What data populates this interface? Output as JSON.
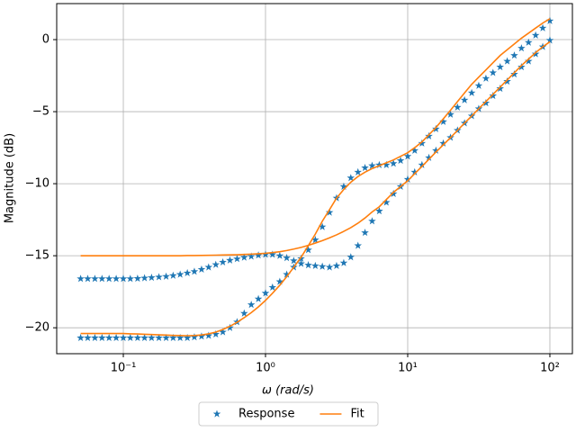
{
  "chart_data": {
    "type": "line",
    "xlabel": "ω (rad/s)",
    "ylabel": "Magnitude (dB)",
    "xscale": "log",
    "grid": true,
    "legend": "below",
    "xlim": [
      0.034,
      144
    ],
    "ylim": [
      -21.8,
      2.5
    ],
    "xticks": [
      {
        "value": 0.1,
        "label": "10⁻¹"
      },
      {
        "value": 1,
        "label": "10⁰"
      },
      {
        "value": 10,
        "label": "10¹"
      },
      {
        "value": 100,
        "label": "10²"
      }
    ],
    "yticks": [
      {
        "value": -20,
        "label": "−20"
      },
      {
        "value": -15,
        "label": "−15"
      },
      {
        "value": -10,
        "label": "−10"
      },
      {
        "value": -5,
        "label": "−5"
      },
      0
    ],
    "x": [
      0.0501,
      0.0562,
      0.0631,
      0.0708,
      0.0794,
      0.0891,
      0.1,
      0.112,
      0.126,
      0.141,
      0.158,
      0.178,
      0.2,
      0.224,
      0.251,
      0.282,
      0.316,
      0.355,
      0.398,
      0.447,
      0.501,
      0.562,
      0.631,
      0.708,
      0.794,
      0.891,
      1,
      1.12,
      1.26,
      1.41,
      1.58,
      1.78,
      2,
      2.24,
      2.51,
      2.82,
      3.16,
      3.55,
      3.98,
      4.47,
      5.01,
      5.62,
      6.31,
      7.08,
      7.94,
      8.91,
      10,
      11.2,
      12.6,
      14.1,
      15.8,
      17.8,
      20,
      22.4,
      25.1,
      28.2,
      31.6,
      35.5,
      39.8,
      44.7,
      50.1,
      56.2,
      63.1,
      70.8,
      79.4,
      89.1,
      100
    ],
    "series": [
      {
        "name": "Response",
        "color": "#1f77b4",
        "marker": "star",
        "curves": [
          [
            -16.6,
            -16.6,
            -16.6,
            -16.6,
            -16.6,
            -16.6,
            -16.6,
            -16.6,
            -16.58,
            -16.55,
            -16.52,
            -16.48,
            -16.44,
            -16.38,
            -16.3,
            -16.2,
            -16.1,
            -15.95,
            -15.8,
            -15.62,
            -15.45,
            -15.32,
            -15.22,
            -15.12,
            -15.05,
            -14.97,
            -14.92,
            -14.92,
            -15.0,
            -15.15,
            -15.35,
            -15.55,
            -15.65,
            -15.7,
            -15.75,
            -15.8,
            -15.7,
            -15.5,
            -15.1,
            -14.3,
            -13.4,
            -12.6,
            -11.9,
            -11.3,
            -10.7,
            -10.2,
            -9.7,
            -9.2,
            -8.7,
            -8.2,
            -7.7,
            -7.2,
            -6.8,
            -6.3,
            -5.8,
            -5.3,
            -4.8,
            -4.4,
            -3.9,
            -3.4,
            -2.9,
            -2.4,
            -1.9,
            -1.5,
            -1.0,
            -0.5,
            -0.05
          ],
          [
            -20.7,
            -20.7,
            -20.7,
            -20.7,
            -20.7,
            -20.7,
            -20.7,
            -20.7,
            -20.7,
            -20.7,
            -20.7,
            -20.7,
            -20.7,
            -20.7,
            -20.7,
            -20.7,
            -20.65,
            -20.6,
            -20.55,
            -20.45,
            -20.3,
            -20.0,
            -19.6,
            -19.0,
            -18.4,
            -18.0,
            -17.6,
            -17.2,
            -16.8,
            -16.3,
            -15.8,
            -15.2,
            -14.6,
            -13.9,
            -13.0,
            -12.0,
            -11.0,
            -10.2,
            -9.6,
            -9.2,
            -8.9,
            -8.75,
            -8.7,
            -8.7,
            -8.6,
            -8.4,
            -8.1,
            -7.7,
            -7.2,
            -6.7,
            -6.2,
            -5.7,
            -5.2,
            -4.7,
            -4.2,
            -3.7,
            -3.2,
            -2.7,
            -2.3,
            -1.9,
            -1.5,
            -1.1,
            -0.6,
            -0.2,
            0.3,
            0.8,
            1.3
          ]
        ]
      },
      {
        "name": "Fit",
        "color": "#ff7f0e",
        "marker": "line",
        "curves": [
          [
            -15.0,
            -15.0,
            -15.0,
            -15.0,
            -15.0,
            -15.0,
            -15.0,
            -15.0,
            -15.0,
            -15.0,
            -15.0,
            -15.0,
            -15.0,
            -15.0,
            -15.0,
            -14.99,
            -14.99,
            -14.98,
            -14.97,
            -14.96,
            -14.95,
            -14.94,
            -14.93,
            -14.91,
            -14.89,
            -14.86,
            -14.83,
            -14.78,
            -14.72,
            -14.64,
            -14.54,
            -14.42,
            -14.28,
            -14.12,
            -13.95,
            -13.76,
            -13.55,
            -13.31,
            -13.05,
            -12.74,
            -12.38,
            -11.96,
            -11.6,
            -11.1,
            -10.6,
            -10.2,
            -9.8,
            -9.3,
            -8.8,
            -8.3,
            -7.8,
            -7.3,
            -6.8,
            -6.3,
            -5.8,
            -5.3,
            -4.8,
            -4.3,
            -3.8,
            -3.3,
            -2.8,
            -2.3,
            -1.8,
            -1.35,
            -0.9,
            -0.5,
            -0.15
          ],
          [
            -20.4,
            -20.4,
            -20.4,
            -20.4,
            -20.4,
            -20.4,
            -20.4,
            -20.42,
            -20.43,
            -20.45,
            -20.47,
            -20.49,
            -20.51,
            -20.53,
            -20.54,
            -20.55,
            -20.54,
            -20.5,
            -20.42,
            -20.3,
            -20.12,
            -19.9,
            -19.62,
            -19.3,
            -18.95,
            -18.55,
            -18.1,
            -17.6,
            -17.05,
            -16.45,
            -15.8,
            -15.1,
            -14.3,
            -13.5,
            -12.6,
            -11.8,
            -11.0,
            -10.4,
            -9.9,
            -9.5,
            -9.2,
            -8.95,
            -8.75,
            -8.55,
            -8.35,
            -8.1,
            -7.85,
            -7.5,
            -7.1,
            -6.6,
            -6.1,
            -5.5,
            -4.9,
            -4.3,
            -3.7,
            -3.1,
            -2.6,
            -2.1,
            -1.6,
            -1.1,
            -0.7,
            -0.3,
            0.1,
            0.45,
            0.8,
            1.15,
            1.45
          ]
        ]
      }
    ]
  }
}
